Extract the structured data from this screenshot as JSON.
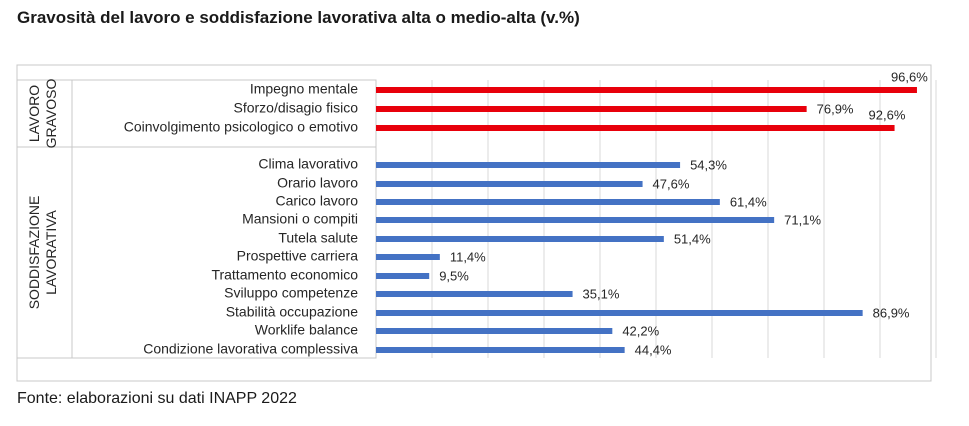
{
  "title": "Gravosità del lavoro e soddisfazione lavorativa alta o medio-alta (v.%)",
  "source": "Fonte: elaborazioni su dati INAPP 2022",
  "colors": {
    "lavoro_gravoso": "#e8000b",
    "soddisfazione": "#4472c4",
    "grid": "#d9d9d9",
    "frame": "#c8c8c8"
  },
  "chart_data": {
    "type": "bar",
    "orientation": "horizontal",
    "xlim": [
      0,
      100
    ],
    "grid": true,
    "groups": [
      {
        "name": "LAVORO GRAVOSO",
        "label_lines": [
          "LAVORO",
          "GRAVOSO"
        ],
        "color": "#e8000b",
        "categories": [
          "Impegno mentale",
          "Sforzo/disagio fisico",
          "Coinvolgimento psicologico o emotivo"
        ],
        "values": [
          96.6,
          76.9,
          92.6
        ],
        "labels": [
          "96,6%",
          "76,9%",
          "92,6%"
        ]
      },
      {
        "name": "SODDISFAZIONE LAVORATIVA",
        "label_lines": [
          "SODDISFAZIONE",
          "LAVORATIVA"
        ],
        "color": "#4472c4",
        "categories": [
          "Clima lavorativo",
          "Orario lavoro",
          "Carico lavoro",
          "Mansioni o compiti",
          "Tutela salute",
          "Prospettive carriera",
          "Trattamento economico",
          "Sviluppo competenze",
          "Stabilità occupazione",
          "Worklife balance",
          "Condizione lavorativa complessiva"
        ],
        "values": [
          54.3,
          47.6,
          61.4,
          71.1,
          51.4,
          11.4,
          9.5,
          35.1,
          86.9,
          42.2,
          44.4
        ],
        "labels": [
          "54,3%",
          "47,6%",
          "61,4%",
          "71,1%",
          "51,4%",
          "11,4%",
          "9,5%",
          "35,1%",
          "86,9%",
          "42,2%",
          "44,4%"
        ]
      }
    ]
  }
}
